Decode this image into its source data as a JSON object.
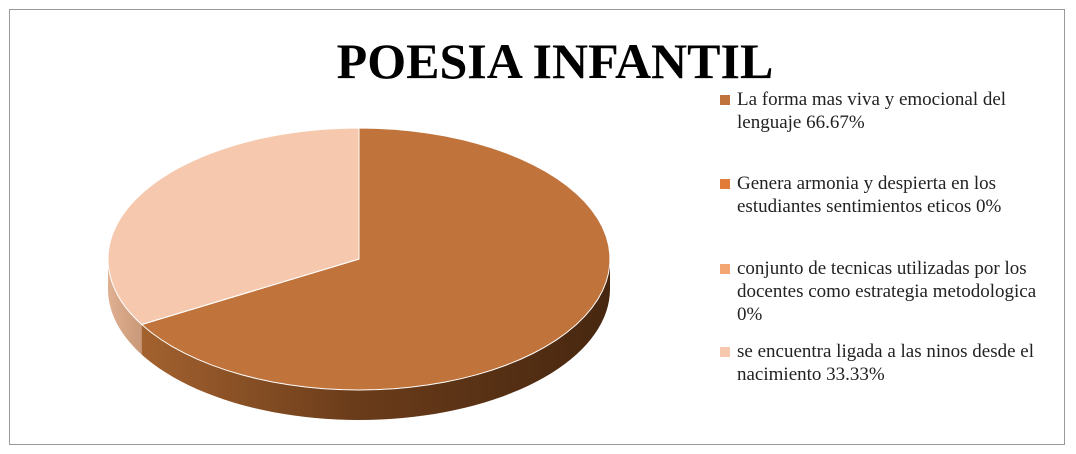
{
  "chart_data": {
    "type": "pie",
    "title": "POESIA INFANTIL",
    "categories": [
      "La forma mas viva y emocional del lenguaje",
      "Genera armonia y despierta en los estudiantes sentimientos eticos",
      "conjunto de tecnicas utilizadas por los docentes como estrategia metodologica",
      "se encuentra ligada a las ninos desde el nacimiento"
    ],
    "values": [
      66.67,
      0,
      0,
      33.33
    ],
    "value_labels": [
      "66.67%",
      "0%",
      "0%",
      "33.33%"
    ],
    "colors": [
      "#C0733A",
      "#E07B39",
      "#F4A672",
      "#F6C9AF"
    ],
    "legend": "right"
  }
}
